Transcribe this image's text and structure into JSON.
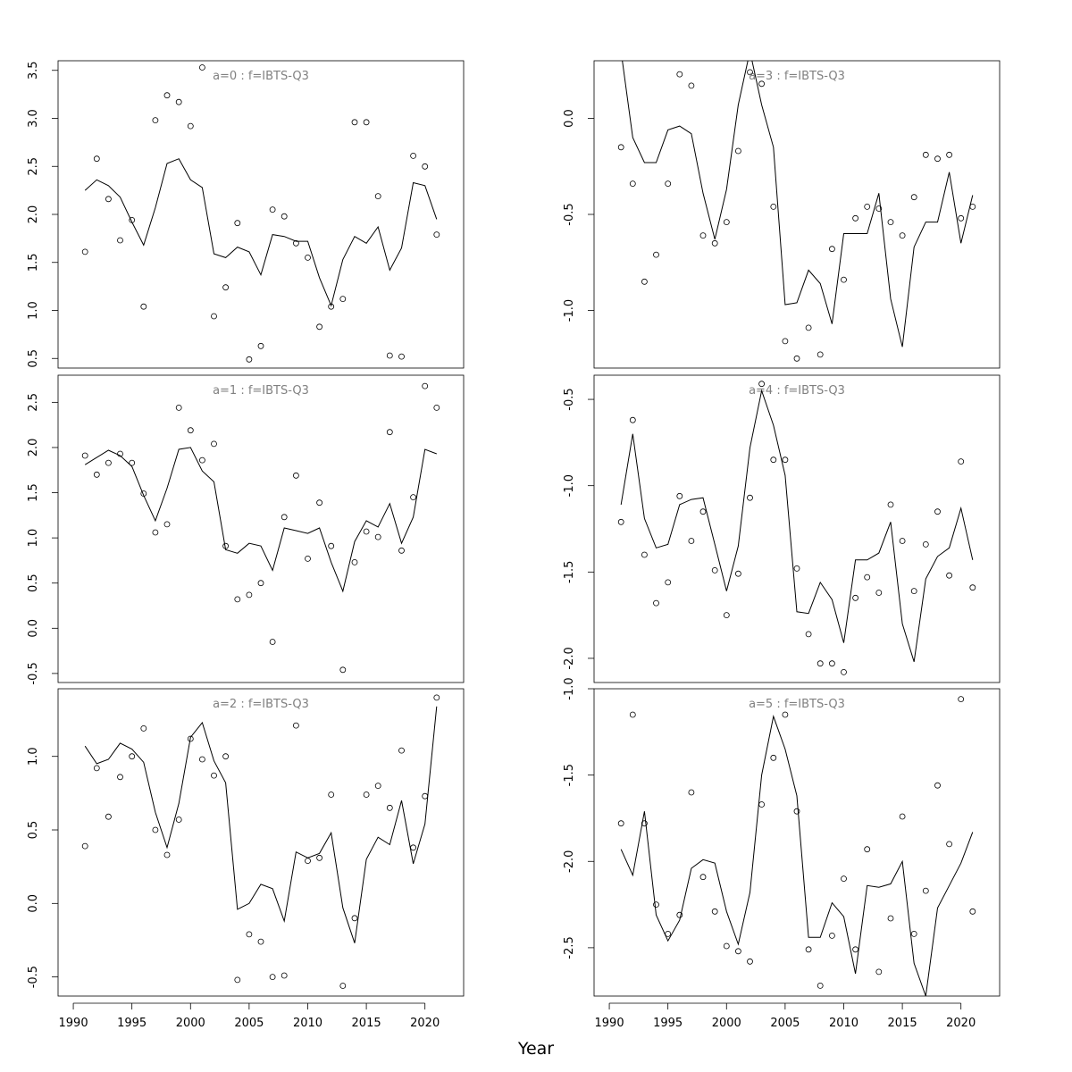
{
  "xlabel": "Year",
  "chart_data": [
    {
      "type": "line",
      "title": "a=0  :  f=IBTS-Q3",
      "xlim": [
        1988.7,
        2023.3
      ],
      "ylim": [
        0.4,
        3.6
      ],
      "yticks": [
        0.5,
        1.0,
        1.5,
        2.0,
        2.5,
        3.0,
        3.5
      ],
      "show_xaxis": false,
      "series": [
        {
          "kind": "points",
          "x": [
            1991,
            1992,
            1993,
            1994,
            1995,
            1996,
            1997,
            1998,
            1999,
            2000,
            2001,
            2002,
            2003,
            2004,
            2005,
            2006,
            2007,
            2008,
            2009,
            2010,
            2011,
            2012,
            2013,
            2014,
            2015,
            2016,
            2017,
            2018,
            2019,
            2020,
            2021
          ],
          "values": [
            1.61,
            2.58,
            2.16,
            1.73,
            1.94,
            1.04,
            2.98,
            3.24,
            3.17,
            2.92,
            3.53,
            0.94,
            1.24,
            1.91,
            0.49,
            0.63,
            2.05,
            1.98,
            1.7,
            1.55,
            0.83,
            1.04,
            1.12,
            2.96,
            2.96,
            2.19,
            0.53,
            0.52,
            2.61,
            2.5,
            1.79
          ]
        },
        {
          "kind": "line",
          "x": [
            1991,
            1992,
            1993,
            1994,
            1995,
            1996,
            1997,
            1998,
            1999,
            2000,
            2001,
            2002,
            2003,
            2004,
            2005,
            2006,
            2007,
            2008,
            2009,
            2010,
            2011,
            2012,
            2013,
            2014,
            2015,
            2016,
            2017,
            2018,
            2019,
            2020,
            2021
          ],
          "values": [
            2.25,
            2.36,
            2.3,
            2.18,
            1.92,
            1.68,
            2.07,
            2.53,
            2.58,
            2.36,
            2.28,
            1.59,
            1.55,
            1.66,
            1.61,
            1.37,
            1.79,
            1.77,
            1.72,
            1.72,
            1.34,
            1.05,
            1.53,
            1.77,
            1.7,
            1.87,
            1.42,
            1.65,
            2.33,
            2.3,
            1.95
          ]
        }
      ]
    },
    {
      "type": "line",
      "title": "a=3  :  f=IBTS-Q3",
      "xlim": [
        1988.7,
        2023.3
      ],
      "ylim": [
        -1.3,
        0.3
      ],
      "yticks": [
        -1.0,
        -0.5,
        0.0
      ],
      "show_xaxis": false,
      "series": [
        {
          "kind": "points",
          "x": [
            1991,
            1992,
            1993,
            1994,
            1995,
            1996,
            1997,
            1998,
            1999,
            2000,
            2001,
            2002,
            2003,
            2004,
            2005,
            2006,
            2007,
            2008,
            2009,
            2010,
            2011,
            2012,
            2013,
            2014,
            2015,
            2016,
            2017,
            2018,
            2019,
            2020,
            2021
          ],
          "values": [
            -0.15,
            -0.34,
            -0.85,
            -0.71,
            -0.34,
            0.23,
            0.17,
            -0.61,
            -0.65,
            -0.54,
            -0.17,
            0.24,
            0.18,
            -0.46,
            -1.16,
            -1.25,
            -1.09,
            -1.23,
            -0.68,
            -0.84,
            -0.52,
            -0.46,
            -0.47,
            -0.54,
            -0.61,
            -0.41,
            -0.19,
            -0.21,
            -0.19,
            -0.52,
            -0.46
          ]
        },
        {
          "kind": "line",
          "x": [
            1991,
            1992,
            1993,
            1994,
            1995,
            1996,
            1997,
            1998,
            1999,
            2000,
            2001,
            2002,
            2003,
            2004,
            2005,
            2006,
            2007,
            2008,
            2009,
            2010,
            2011,
            2012,
            2013,
            2014,
            2015,
            2016,
            2017,
            2018,
            2019,
            2020,
            2021
          ],
          "values": [
            0.35,
            -0.1,
            -0.23,
            -0.23,
            -0.06,
            -0.04,
            -0.08,
            -0.39,
            -0.63,
            -0.37,
            0.07,
            0.35,
            0.07,
            -0.15,
            -0.97,
            -0.96,
            -0.79,
            -0.86,
            -1.07,
            -0.6,
            -0.6,
            -0.6,
            -0.39,
            -0.94,
            -1.19,
            -0.67,
            -0.54,
            -0.54,
            -0.28,
            -0.65,
            -0.4
          ]
        }
      ]
    },
    {
      "type": "line",
      "title": "a=1  :  f=IBTS-Q3",
      "xlim": [
        1988.7,
        2023.3
      ],
      "ylim": [
        -0.6,
        2.8
      ],
      "yticks": [
        -0.5,
        0.0,
        0.5,
        1.0,
        1.5,
        2.0,
        2.5
      ],
      "show_xaxis": false,
      "series": [
        {
          "kind": "points",
          "x": [
            1991,
            1992,
            1993,
            1994,
            1995,
            1996,
            1997,
            1998,
            1999,
            2000,
            2001,
            2002,
            2003,
            2004,
            2005,
            2006,
            2007,
            2008,
            2009,
            2010,
            2011,
            2012,
            2013,
            2014,
            2015,
            2016,
            2017,
            2018,
            2019,
            2020,
            2021
          ],
          "values": [
            1.91,
            1.7,
            1.83,
            1.93,
            1.83,
            1.49,
            1.06,
            1.15,
            2.44,
            2.19,
            1.86,
            2.04,
            0.91,
            0.32,
            0.37,
            0.5,
            -0.15,
            1.23,
            1.69,
            0.77,
            1.39,
            0.91,
            -0.46,
            0.73,
            1.07,
            1.01,
            2.17,
            0.86,
            1.45,
            2.68,
            2.44
          ]
        },
        {
          "kind": "line",
          "x": [
            1991,
            1992,
            1993,
            1994,
            1995,
            1996,
            1997,
            1998,
            1999,
            2000,
            2001,
            2002,
            2003,
            2004,
            2005,
            2006,
            2007,
            2008,
            2009,
            2010,
            2011,
            2012,
            2013,
            2014,
            2015,
            2016,
            2017,
            2018,
            2019,
            2020,
            2021
          ],
          "values": [
            1.81,
            1.89,
            1.97,
            1.91,
            1.79,
            1.47,
            1.19,
            1.55,
            1.98,
            2.0,
            1.74,
            1.62,
            0.87,
            0.83,
            0.94,
            0.91,
            0.64,
            1.11,
            1.08,
            1.05,
            1.11,
            0.73,
            0.41,
            0.96,
            1.19,
            1.12,
            1.38,
            0.94,
            1.23,
            1.98,
            1.93
          ]
        }
      ]
    },
    {
      "type": "line",
      "title": "a=4  :  f=IBTS-Q3",
      "xlim": [
        1988.7,
        2023.3
      ],
      "ylim": [
        -2.14,
        -0.36
      ],
      "yticks": [
        -2.0,
        -1.5,
        -1.0,
        -0.5
      ],
      "show_xaxis": false,
      "series": [
        {
          "kind": "points",
          "x": [
            1991,
            1992,
            1993,
            1994,
            1995,
            1996,
            1997,
            1998,
            1999,
            2000,
            2001,
            2002,
            2003,
            2004,
            2005,
            2006,
            2007,
            2008,
            2009,
            2010,
            2011,
            2012,
            2013,
            2014,
            2015,
            2016,
            2017,
            2018,
            2019,
            2020,
            2021
          ],
          "values": [
            -1.21,
            -0.62,
            -1.4,
            -1.68,
            -1.56,
            -1.06,
            -1.32,
            -1.15,
            -1.49,
            -1.75,
            -1.51,
            -1.07,
            -0.41,
            -0.85,
            -0.85,
            -1.48,
            -1.86,
            -2.03,
            -2.03,
            -2.08,
            -1.65,
            -1.53,
            -1.62,
            -1.11,
            -1.32,
            -1.61,
            -1.34,
            -1.15,
            -1.52,
            -0.86,
            -1.59
          ]
        },
        {
          "kind": "line",
          "x": [
            1991,
            1992,
            1993,
            1994,
            1995,
            1996,
            1997,
            1998,
            1999,
            2000,
            2001,
            2002,
            2003,
            2004,
            2005,
            2006,
            2007,
            2008,
            2009,
            2010,
            2011,
            2012,
            2013,
            2014,
            2015,
            2016,
            2017,
            2018,
            2019,
            2020,
            2021
          ],
          "values": [
            -1.11,
            -0.7,
            -1.19,
            -1.36,
            -1.34,
            -1.11,
            -1.08,
            -1.07,
            -1.34,
            -1.61,
            -1.35,
            -0.78,
            -0.45,
            -0.65,
            -0.94,
            -1.73,
            -1.74,
            -1.56,
            -1.66,
            -1.91,
            -1.43,
            -1.43,
            -1.39,
            -1.21,
            -1.8,
            -2.02,
            -1.54,
            -1.41,
            -1.36,
            -1.13,
            -1.43
          ]
        }
      ]
    },
    {
      "type": "line",
      "title": "a=2  :  f=IBTS-Q3",
      "xlim": [
        1988.7,
        2023.3
      ],
      "ylim": [
        -0.63,
        1.46
      ],
      "yticks": [
        -0.5,
        0.0,
        0.5,
        1.0
      ],
      "show_xaxis": true,
      "xticks": [
        1990,
        1995,
        2000,
        2005,
        2010,
        2015,
        2020
      ],
      "series": [
        {
          "kind": "points",
          "x": [
            1991,
            1992,
            1993,
            1994,
            1995,
            1996,
            1997,
            1998,
            1999,
            2000,
            2001,
            2002,
            2003,
            2004,
            2005,
            2006,
            2007,
            2008,
            2009,
            2010,
            2011,
            2012,
            2013,
            2014,
            2015,
            2016,
            2017,
            2018,
            2019,
            2020,
            2021
          ],
          "values": [
            0.39,
            0.92,
            0.59,
            0.86,
            1.0,
            1.19,
            0.5,
            0.33,
            0.57,
            1.12,
            0.98,
            0.87,
            1.0,
            -0.52,
            -0.21,
            -0.26,
            -0.5,
            -0.49,
            1.21,
            0.29,
            0.31,
            0.74,
            -0.56,
            -0.1,
            0.74,
            0.8,
            0.65,
            1.04,
            0.38,
            0.73,
            1.4
          ]
        },
        {
          "kind": "line",
          "x": [
            1991,
            1992,
            1993,
            1994,
            1995,
            1996,
            1997,
            1998,
            1999,
            2000,
            2001,
            2002,
            2003,
            2004,
            2005,
            2006,
            2007,
            2008,
            2009,
            2010,
            2011,
            2012,
            2013,
            2014,
            2015,
            2016,
            2017,
            2018,
            2019,
            2020,
            2021
          ],
          "values": [
            1.07,
            0.95,
            0.98,
            1.09,
            1.05,
            0.96,
            0.62,
            0.38,
            0.68,
            1.13,
            1.23,
            0.97,
            0.82,
            -0.04,
            0.0,
            0.13,
            0.1,
            -0.12,
            0.35,
            0.31,
            0.34,
            0.48,
            -0.03,
            -0.27,
            0.3,
            0.45,
            0.4,
            0.7,
            0.27,
            0.54,
            1.34
          ]
        }
      ]
    },
    {
      "type": "line",
      "title": "a=5  :  f=IBTS-Q3",
      "xlim": [
        1988.7,
        2023.3
      ],
      "ylim": [
        -2.78,
        -1.0
      ],
      "yticks": [
        -2.5,
        -2.0,
        -1.5,
        -1.0
      ],
      "show_xaxis": true,
      "xticks": [
        1990,
        1995,
        2000,
        2005,
        2010,
        2015,
        2020
      ],
      "series": [
        {
          "kind": "points",
          "x": [
            1991,
            1992,
            1993,
            1994,
            1995,
            1996,
            1997,
            1998,
            1999,
            2000,
            2001,
            2002,
            2003,
            2004,
            2005,
            2006,
            2007,
            2008,
            2009,
            2010,
            2011,
            2012,
            2013,
            2014,
            2015,
            2016,
            2017,
            2018,
            2019,
            2020,
            2021
          ],
          "values": [
            -1.78,
            -1.15,
            -1.78,
            -2.25,
            -2.42,
            -2.31,
            -1.6,
            -2.09,
            -2.29,
            -2.49,
            -2.52,
            -2.58,
            -1.67,
            -1.4,
            -1.15,
            -1.71,
            -2.51,
            -2.72,
            -2.43,
            -2.1,
            -2.51,
            -1.93,
            -2.64,
            -2.33,
            -1.74,
            -2.42,
            -2.17,
            -1.56,
            -1.9,
            -1.06,
            -2.29
          ]
        },
        {
          "kind": "line",
          "x": [
            1991,
            1992,
            1993,
            1994,
            1995,
            1996,
            1997,
            1998,
            1999,
            2000,
            2001,
            2002,
            2003,
            2004,
            2005,
            2006,
            2007,
            2008,
            2009,
            2010,
            2011,
            2012,
            2013,
            2014,
            2015,
            2016,
            2017,
            2018,
            2019,
            2020,
            2021
          ],
          "values": [
            -1.93,
            -2.08,
            -1.71,
            -2.31,
            -2.46,
            -2.34,
            -2.04,
            -1.99,
            -2.01,
            -2.29,
            -2.48,
            -2.18,
            -1.5,
            -1.16,
            -1.35,
            -1.62,
            -2.44,
            -2.44,
            -2.24,
            -2.32,
            -2.65,
            -2.14,
            -2.15,
            -2.13,
            -2.0,
            -2.59,
            -2.78,
            -2.27,
            -2.14,
            -2.01,
            -1.83
          ]
        }
      ]
    }
  ]
}
